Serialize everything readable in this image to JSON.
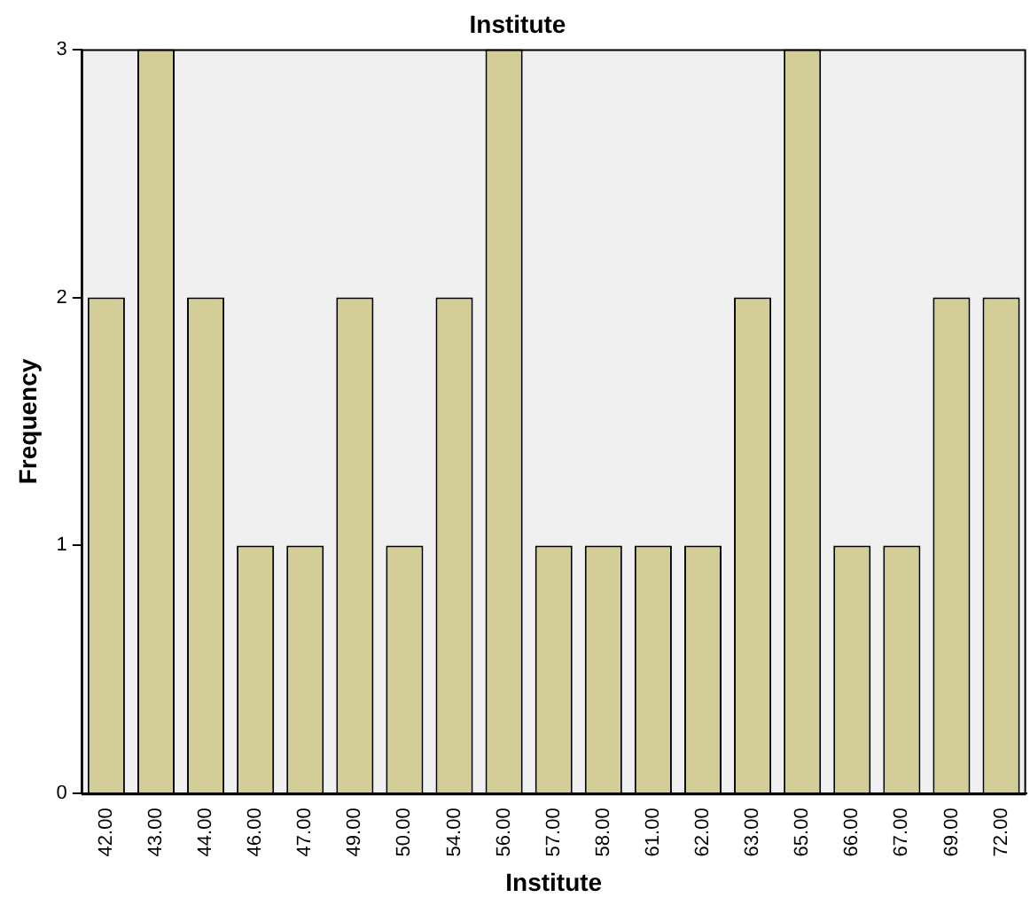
{
  "chart_data": {
    "type": "bar",
    "title": "Institute",
    "xlabel": "Institute",
    "ylabel": "Frequency",
    "categories": [
      "42.00",
      "43.00",
      "44.00",
      "46.00",
      "47.00",
      "49.00",
      "50.00",
      "54.00",
      "56.00",
      "57.00",
      "58.00",
      "61.00",
      "62.00",
      "63.00",
      "65.00",
      "66.00",
      "67.00",
      "69.00",
      "72.00"
    ],
    "values": [
      2,
      3,
      2,
      1,
      1,
      2,
      1,
      2,
      3,
      1,
      1,
      1,
      1,
      2,
      3,
      1,
      1,
      2,
      2
    ],
    "color": "#d3ce97",
    "ylim": [
      0,
      3
    ],
    "yticks": [
      0,
      1,
      2,
      3
    ],
    "grid": false,
    "legend": false
  }
}
